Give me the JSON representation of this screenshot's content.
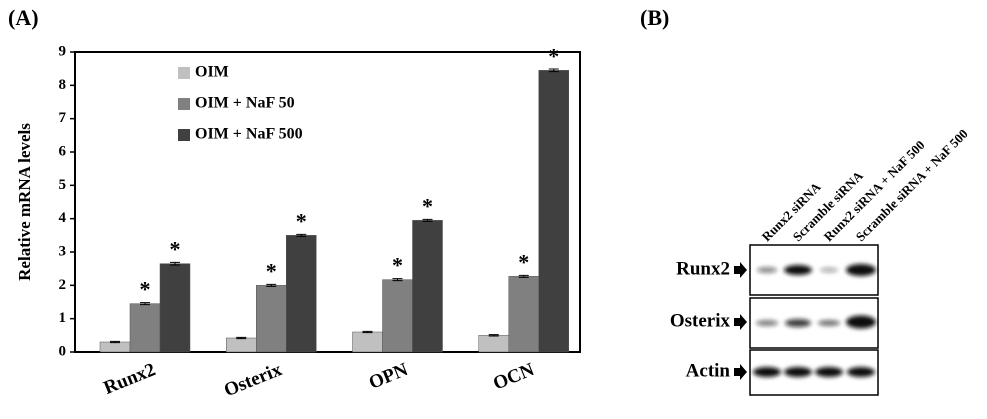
{
  "panels": {
    "left_label": "(A)",
    "right_label": "(B)"
  },
  "chart_data": {
    "type": "bar",
    "y_label": "Relative mRNA levels",
    "categories": [
      "Runx2",
      "Osterix",
      "OPN",
      "OCN"
    ],
    "series": [
      {
        "name": "OIM",
        "color": "#c0c0c0",
        "values": [
          0.3,
          0.42,
          0.6,
          0.5
        ],
        "errors": [
          0.02,
          0.02,
          0.02,
          0.02
        ]
      },
      {
        "name": "OIM + NaF 50",
        "color": "#808080",
        "values": [
          1.45,
          2.0,
          2.17,
          2.27
        ],
        "errors": [
          0.03,
          0.03,
          0.03,
          0.03
        ],
        "significance": [
          "*",
          "*",
          "*",
          "*"
        ]
      },
      {
        "name": "OIM + NaF 500",
        "color": "#404040",
        "values": [
          2.65,
          3.5,
          3.95,
          8.45
        ],
        "errors": [
          0.04,
          0.03,
          0.03,
          0.04
        ],
        "significance": [
          "*",
          "*",
          "*",
          "*"
        ]
      }
    ],
    "ylim": [
      0,
      9
    ],
    "yticks": [
      0,
      1,
      2,
      3,
      4,
      5,
      6,
      7,
      8,
      9
    ],
    "grid": false,
    "legend": "top-left"
  },
  "blot": {
    "lanes": [
      "Runx2 siRNA",
      "Scramble siRNA",
      "Runx2 siRNA + NaF 500",
      "Scramble siRNA + NaF 500"
    ],
    "rows": [
      "Runx2",
      "Osterix",
      "Actin"
    ]
  }
}
